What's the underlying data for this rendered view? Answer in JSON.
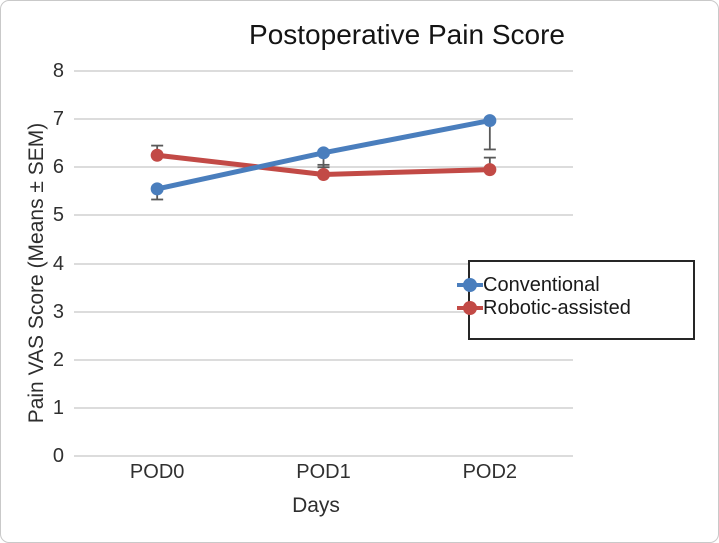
{
  "frame": {
    "border_color": "#c9c9c9",
    "background_color": "#ffffff"
  },
  "chart_data": {
    "type": "line",
    "title": "Postoperative Pain Score",
    "xlabel": "Days",
    "ylabel": "Pain VAS Score (Means ± SEM)",
    "categories": [
      "POD0",
      "POD1",
      "POD2"
    ],
    "y_ticks": [
      0,
      1,
      2,
      3,
      4,
      5,
      6,
      7,
      8
    ],
    "ylim": [
      0,
      8
    ],
    "grid": true,
    "gridline_color": "#dcdcdc",
    "error_bar_color": "#595959",
    "legend_position": "right-middle-overlay",
    "series": [
      {
        "name": "Conventional",
        "color": "#4a7ebd",
        "values": [
          5.55,
          6.3,
          6.97
        ],
        "error_up": [
          0,
          0,
          0
        ],
        "error_down": [
          0.22,
          0.3,
          0.6
        ]
      },
      {
        "name": "Robotic-assisted",
        "color": "#c24a46",
        "values": [
          6.25,
          5.85,
          5.95
        ],
        "error_up": [
          0.2,
          0.2,
          0.25
        ],
        "error_down": [
          0,
          0,
          0
        ]
      }
    ]
  }
}
